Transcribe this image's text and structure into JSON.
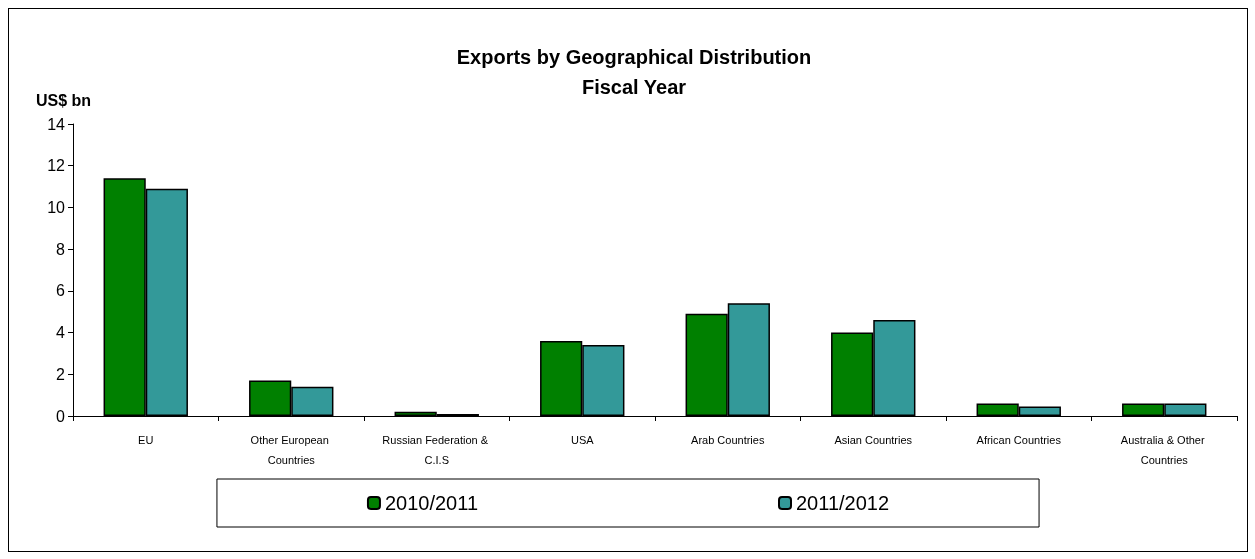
{
  "chart_data": {
    "type": "bar",
    "title": "Exports by Geographical Distribution\nFiscal Year",
    "ylabel": "US$ bn",
    "categories": [
      "EU",
      "Other European Countries",
      "Russian Federation & C.I.S",
      "USA",
      "Arab Countries",
      "Asian Countries",
      "African Countries",
      "Australia & Other Countries"
    ],
    "series": [
      {
        "name": "2010/2011",
        "color": "#008000",
        "values": [
          11.4,
          1.7,
          0.2,
          3.6,
          4.9,
          4.0,
          0.6,
          0.6
        ]
      },
      {
        "name": "2011/2012",
        "color": "#339999",
        "values": [
          10.9,
          1.4,
          0.1,
          3.4,
          5.4,
          4.6,
          0.45,
          0.6
        ]
      }
    ],
    "ylim": [
      0,
      14
    ],
    "yticks": [
      0,
      2,
      4,
      6,
      8,
      10,
      12,
      14
    ],
    "grid": false,
    "legend": "bottom"
  }
}
